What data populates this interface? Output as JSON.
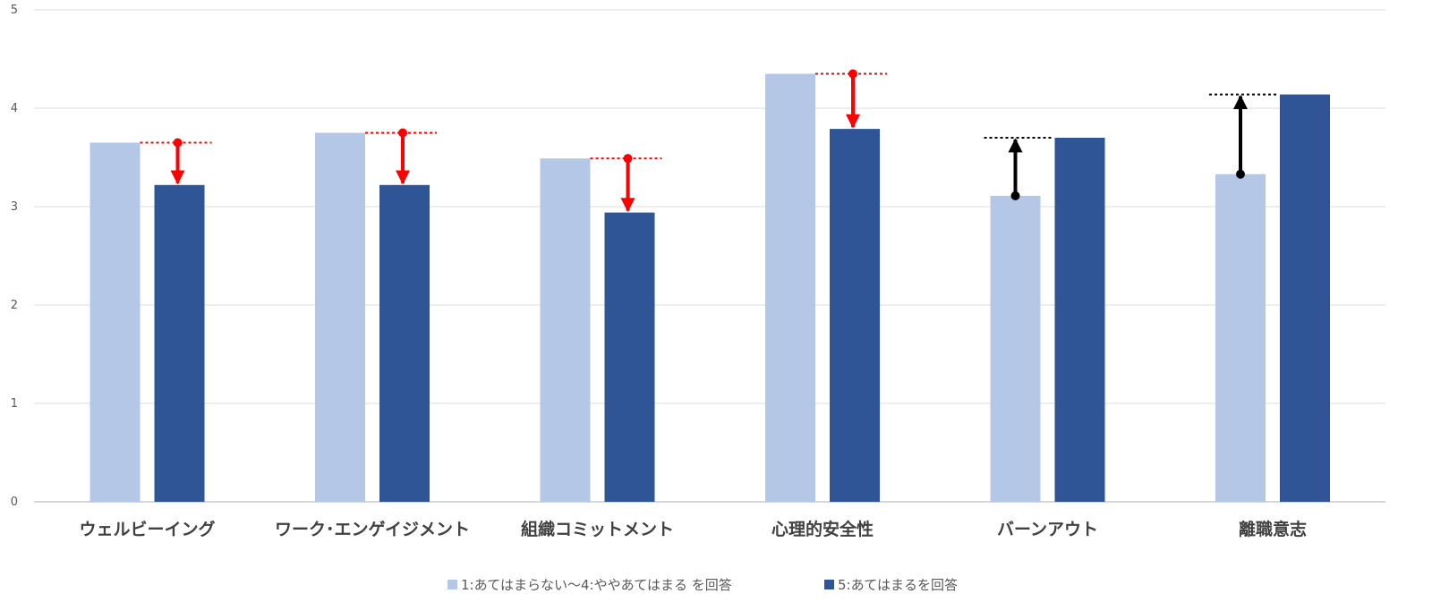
{
  "chart_data": {
    "type": "bar",
    "categories": [
      "ウェルビーイング",
      "ワーク･エンゲイジメント",
      "組織コミットメント",
      "心理的安全性",
      "バーンアウト",
      "離職意志"
    ],
    "series": [
      {
        "name": "1:あてはまらない〜4:ややあてはまる を回答",
        "values": [
          3.65,
          3.75,
          3.49,
          4.35,
          3.11,
          3.33
        ],
        "color": "#b4c7e7"
      },
      {
        "name": "5:あてはまるを回答",
        "values": [
          3.22,
          3.22,
          2.94,
          3.79,
          3.7,
          4.14
        ],
        "color": "#2f5597"
      }
    ],
    "ylim": [
      0,
      5
    ],
    "yticks": [
      0,
      1,
      2,
      3,
      4,
      5
    ],
    "grid": true,
    "legend": "bottom",
    "annotations": [
      {
        "category": "ウェルビーイング",
        "direction": "down",
        "color": "#ff0000"
      },
      {
        "category": "ワーク･エンゲイジメント",
        "direction": "down",
        "color": "#ff0000"
      },
      {
        "category": "組織コミットメント",
        "direction": "down",
        "color": "#ff0000"
      },
      {
        "category": "心理的安全性",
        "direction": "down",
        "color": "#ff0000"
      },
      {
        "category": "バーンアウト",
        "direction": "up",
        "color": "#000000"
      },
      {
        "category": "離職意志",
        "direction": "up",
        "color": "#000000"
      }
    ]
  }
}
